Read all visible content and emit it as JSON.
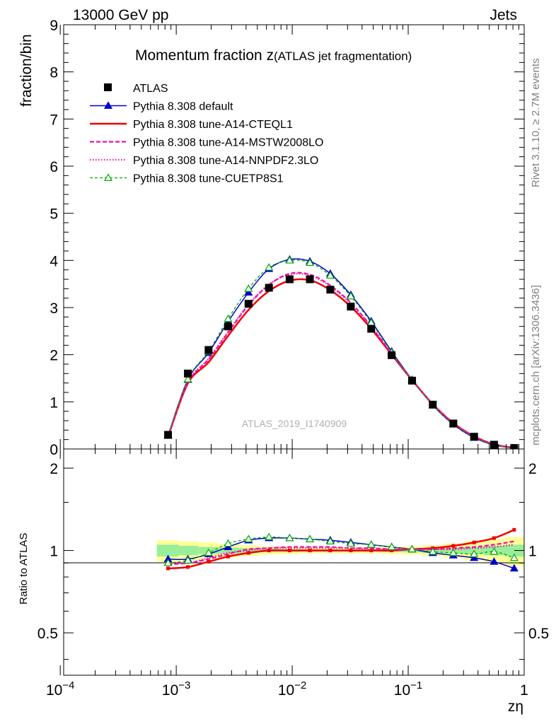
{
  "header": {
    "left": "13000 GeV pp",
    "right": "Jets"
  },
  "side_labels": {
    "rivet": "Rivet 3.1.10, ≥ 2.7M events",
    "mcplots": "mcplots.cern.ch [arXiv:1306.3436]"
  },
  "chart_data": {
    "type": "line",
    "title_main": "Momentum fraction z",
    "title_sub": "(ATLAS jet fragmentation)",
    "watermark": "ATLAS_2019_I1740909",
    "ylabel": "fraction/bin",
    "ratio_ylabel": "Ratio to ATLAS",
    "xlabel": "zη",
    "x_scale": "log",
    "xlim": [
      0.000107,
      1.0
    ],
    "ylim": [
      0,
      9
    ],
    "ratio_ylim": [
      0.35,
      2.35
    ],
    "ratio_log": true,
    "yticks": [
      0,
      1,
      2,
      3,
      4,
      5,
      6,
      7,
      8,
      9
    ],
    "ratio_ticks": [
      0.5,
      1,
      2
    ],
    "xticks": [
      {
        "value": 0.0001,
        "base": "10",
        "exp": "−4"
      },
      {
        "value": 0.001,
        "base": "10",
        "exp": "−3"
      },
      {
        "value": 0.01,
        "base": "10",
        "exp": "−2"
      },
      {
        "value": 0.1,
        "base": "10",
        "exp": "−1"
      },
      {
        "value": 1,
        "base": "1",
        "exp": ""
      }
    ],
    "legend_placement": "top-left",
    "x": [
      0.00085,
      0.00126,
      0.0019,
      0.0028,
      0.0042,
      0.0063,
      0.0095,
      0.0142,
      0.0213,
      0.032,
      0.048,
      0.072,
      0.108,
      0.163,
      0.245,
      0.37,
      0.55,
      0.82
    ],
    "data": {
      "name": "ATLAS",
      "values": [
        0.3,
        1.6,
        2.1,
        2.6,
        3.08,
        3.42,
        3.6,
        3.6,
        3.38,
        3.02,
        2.55,
        1.99,
        1.45,
        0.94,
        0.54,
        0.26,
        0.09,
        0.02
      ]
    },
    "ratio_band": {
      "x_edges": [
        0.00068,
        0.00105,
        0.00155,
        0.0023,
        0.0035,
        0.0052,
        0.0078,
        0.0117,
        0.0175,
        0.026,
        0.039,
        0.059,
        0.088,
        0.132,
        0.2,
        0.3,
        0.45,
        0.68,
        1.0
      ],
      "inner": [
        0.05,
        0.04,
        0.03,
        0.025,
        0.02,
        0.015,
        0.012,
        0.01,
        0.01,
        0.01,
        0.01,
        0.012,
        0.015,
        0.02,
        0.025,
        0.03,
        0.04,
        0.05
      ],
      "outer": [
        0.09,
        0.08,
        0.07,
        0.055,
        0.045,
        0.035,
        0.03,
        0.025,
        0.025,
        0.025,
        0.025,
        0.03,
        0.035,
        0.045,
        0.06,
        0.08,
        0.1,
        0.12
      ]
    },
    "series": [
      {
        "name": "Pythia 8.308 default",
        "color": "#0000cc",
        "dash": "solid",
        "width": 1.5,
        "marker": "triangle-filled",
        "values": [
          0.28,
          1.47,
          2.04,
          2.7,
          3.32,
          3.82,
          4.02,
          3.98,
          3.72,
          3.27,
          2.71,
          2.07,
          1.47,
          0.93,
          0.52,
          0.24,
          0.082,
          0.017
        ],
        "ratio": [
          0.93,
          0.93,
          0.97,
          1.03,
          1.09,
          1.11,
          1.11,
          1.1,
          1.09,
          1.07,
          1.05,
          1.03,
          1.01,
          0.98,
          0.96,
          0.94,
          0.91,
          0.86
        ]
      },
      {
        "name": "Pythia 8.308 tune-A14-CTEQL1",
        "color": "#ee0000",
        "dash": "solid",
        "width": 2.5,
        "marker": "none",
        "ratio_marker": "square-small",
        "values": [
          0.26,
          1.39,
          1.84,
          2.4,
          2.95,
          3.35,
          3.57,
          3.58,
          3.37,
          3.02,
          2.55,
          2.0,
          1.46,
          0.95,
          0.55,
          0.27,
          0.097,
          0.024
        ],
        "ratio": [
          0.86,
          0.87,
          0.91,
          0.95,
          0.98,
          1.0,
          1.0,
          1.0,
          1.0,
          1.0,
          1.0,
          1.0,
          1.01,
          1.02,
          1.04,
          1.07,
          1.11,
          1.19
        ]
      },
      {
        "name": "Pythia 8.308 tune-A14-MSTW2008LO",
        "color": "#ee11aa",
        "dash": "6,3",
        "width": 2.2,
        "marker": "none",
        "values": [
          0.27,
          1.41,
          1.9,
          2.47,
          3.05,
          3.48,
          3.72,
          3.7,
          3.47,
          3.1,
          2.6,
          2.02,
          1.47,
          0.95,
          0.55,
          0.27,
          0.094,
          0.023
        ],
        "ratio": [
          0.89,
          0.9,
          0.93,
          0.97,
          1.01,
          1.02,
          1.03,
          1.03,
          1.03,
          1.02,
          1.02,
          1.01,
          1.01,
          1.01,
          1.02,
          1.03,
          1.05,
          1.08
        ]
      },
      {
        "name": "Pythia 8.308 tune-A14-NNPDF2.3LO",
        "color": "#ee11aa",
        "dash": "1.5,2.5",
        "width": 2.2,
        "marker": "none",
        "values": [
          0.27,
          1.42,
          1.92,
          2.49,
          3.07,
          3.49,
          3.7,
          3.68,
          3.45,
          3.08,
          2.59,
          2.01,
          1.47,
          0.95,
          0.55,
          0.27,
          0.093,
          0.022
        ],
        "ratio": [
          0.9,
          0.9,
          0.94,
          0.98,
          1.0,
          1.02,
          1.02,
          1.02,
          1.02,
          1.02,
          1.01,
          1.01,
          1.01,
          1.01,
          1.01,
          1.02,
          1.03,
          1.05
        ]
      },
      {
        "name": "Pythia 8.308 tune-CUETP8S1",
        "color": "#00aa00",
        "dash": "4,3",
        "width": 1.3,
        "marker": "triangle-open",
        "values": [
          0.29,
          1.48,
          2.07,
          2.76,
          3.4,
          3.85,
          4.0,
          3.95,
          3.68,
          3.24,
          2.68,
          2.05,
          1.46,
          0.93,
          0.53,
          0.25,
          0.086,
          0.019
        ],
        "ratio": [
          0.9,
          0.92,
          0.98,
          1.06,
          1.1,
          1.12,
          1.11,
          1.1,
          1.08,
          1.06,
          1.05,
          1.03,
          1.01,
          0.99,
          0.98,
          0.97,
          0.99,
          0.94
        ]
      }
    ]
  }
}
